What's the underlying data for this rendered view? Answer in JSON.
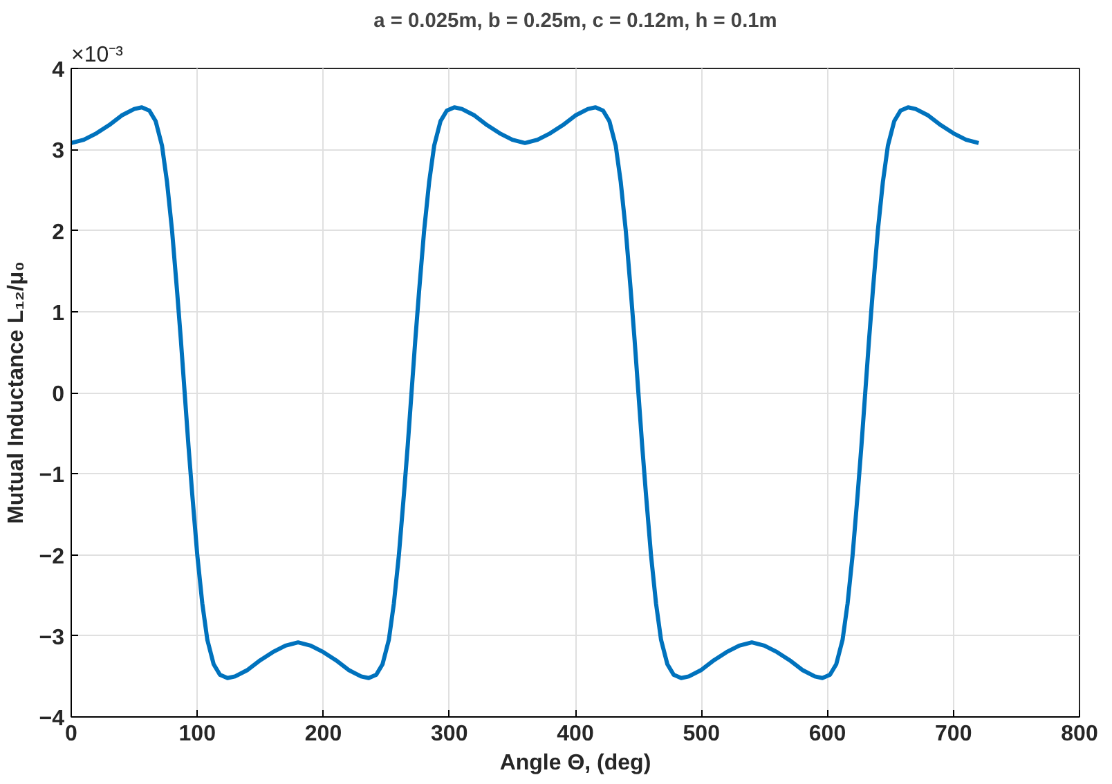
{
  "chart_data": {
    "type": "line",
    "title": "a = 0.025m, b = 0.25m, c = 0.12m, h = 0.1m",
    "xlabel": "Angle Θ, (deg)",
    "ylabel": "Mutual Inductance L₁₂/μ₀",
    "annotations": [
      "×10⁻³"
    ],
    "xlim": [
      0,
      800
    ],
    "ylim": [
      -4,
      4
    ],
    "xticks": [
      0,
      100,
      200,
      300,
      400,
      500,
      600,
      700,
      800
    ],
    "yticks": [
      -4,
      -3,
      -2,
      -1,
      0,
      1,
      2,
      3,
      4
    ],
    "grid": true,
    "marker": "none",
    "line_style": "solid",
    "series": [
      {
        "color": "#0072bd",
        "x": [
          0,
          10,
          20,
          30,
          40,
          50,
          56,
          62,
          67,
          72,
          76,
          80,
          84,
          87,
          90,
          93,
          96,
          100,
          104,
          108,
          113,
          118,
          124,
          130,
          140,
          150,
          160,
          170,
          180,
          190,
          200,
          210,
          220,
          230,
          236,
          242,
          247,
          252,
          256,
          260,
          264,
          267,
          270,
          273,
          276,
          280,
          284,
          288,
          293,
          298,
          304,
          310,
          320,
          330,
          340,
          350,
          360,
          370,
          380,
          390,
          400,
          410,
          416,
          422,
          427,
          432,
          436,
          440,
          444,
          447,
          450,
          453,
          456,
          460,
          464,
          468,
          473,
          478,
          484,
          490,
          500,
          510,
          520,
          530,
          540,
          550,
          560,
          570,
          580,
          590,
          596,
          602,
          607,
          612,
          616,
          620,
          624,
          627,
          630,
          633,
          636,
          640,
          644,
          648,
          653,
          658,
          664,
          670,
          680,
          690,
          700,
          710,
          720
        ],
        "values": [
          3.08,
          3.12,
          3.2,
          3.3,
          3.42,
          3.5,
          3.52,
          3.48,
          3.35,
          3.05,
          2.6,
          2.0,
          1.25,
          0.65,
          0,
          -0.65,
          -1.25,
          -2.0,
          -2.6,
          -3.05,
          -3.35,
          -3.48,
          -3.52,
          -3.5,
          -3.42,
          -3.3,
          -3.2,
          -3.12,
          -3.08,
          -3.12,
          -3.2,
          -3.3,
          -3.42,
          -3.5,
          -3.52,
          -3.48,
          -3.35,
          -3.05,
          -2.6,
          -2.0,
          -1.25,
          -0.65,
          0,
          0.65,
          1.25,
          2.0,
          2.6,
          3.05,
          3.35,
          3.48,
          3.52,
          3.5,
          3.42,
          3.3,
          3.2,
          3.12,
          3.08,
          3.12,
          3.2,
          3.3,
          3.42,
          3.5,
          3.52,
          3.48,
          3.35,
          3.05,
          2.6,
          2.0,
          1.25,
          0.65,
          0,
          -0.65,
          -1.25,
          -2.0,
          -2.6,
          -3.05,
          -3.35,
          -3.48,
          -3.52,
          -3.5,
          -3.42,
          -3.3,
          -3.2,
          -3.12,
          -3.08,
          -3.12,
          -3.2,
          -3.3,
          -3.42,
          -3.5,
          -3.52,
          -3.48,
          -3.35,
          -3.05,
          -2.6,
          -2.0,
          -1.25,
          -0.65,
          0,
          0.65,
          1.25,
          2.0,
          2.6,
          3.05,
          3.35,
          3.48,
          3.52,
          3.5,
          3.42,
          3.3,
          3.2,
          3.12,
          3.08
        ]
      }
    ]
  }
}
